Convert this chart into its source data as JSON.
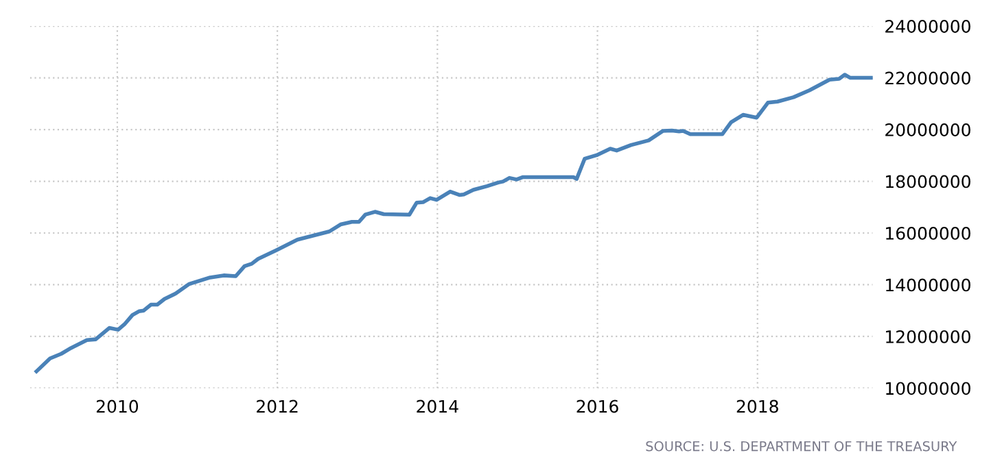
{
  "chart_data": {
    "type": "line",
    "x": [
      2008.99,
      2009.16,
      2009.3,
      2009.42,
      2009.62,
      2009.73,
      2009.9,
      2010.01,
      2010.09,
      2010.19,
      2010.27,
      2010.33,
      2010.42,
      2010.5,
      2010.59,
      2010.73,
      2010.9,
      2011.16,
      2011.33,
      2011.48,
      2011.59,
      2011.68,
      2011.76,
      2011.99,
      2012.25,
      2012.65,
      2012.79,
      2012.93,
      2013.02,
      2013.1,
      2013.22,
      2013.33,
      2013.65,
      2013.74,
      2013.82,
      2013.91,
      2013.99,
      2014.16,
      2014.28,
      2014.33,
      2014.45,
      2014.62,
      2014.76,
      2014.82,
      2014.9,
      2014.99,
      2015.07,
      2015.7,
      2015.74,
      2015.84,
      2015.99,
      2016.16,
      2016.24,
      2016.42,
      2016.64,
      2016.82,
      2016.93,
      2017.02,
      2017.07,
      2017.16,
      2017.56,
      2017.67,
      2017.82,
      2017.99,
      2018.13,
      2018.25,
      2018.45,
      2018.65,
      2018.9,
      2019.02,
      2019.09,
      2019.16,
      2019.42
    ],
    "series": [
      {
        "color": "#4a82b8",
        "values": [
          10650000,
          11150000,
          11330000,
          11550000,
          11860000,
          11890000,
          12330000,
          12260000,
          12470000,
          12830000,
          12970000,
          13000000,
          13230000,
          13230000,
          13450000,
          13660000,
          14030000,
          14280000,
          14360000,
          14330000,
          14720000,
          14810000,
          15000000,
          15340000,
          15740000,
          16060000,
          16330000,
          16430000,
          16430000,
          16710000,
          16820000,
          16730000,
          16710000,
          17170000,
          17190000,
          17350000,
          17280000,
          17600000,
          17470000,
          17490000,
          17670000,
          17810000,
          17950000,
          17990000,
          18130000,
          18070000,
          18160000,
          18160000,
          18090000,
          18870000,
          19010000,
          19260000,
          19190000,
          19400000,
          19580000,
          19950000,
          19960000,
          19930000,
          19950000,
          19820000,
          19820000,
          20280000,
          20570000,
          20460000,
          21040000,
          21080000,
          21250000,
          21520000,
          21930000,
          21960000,
          22120000,
          22000000,
          22000000
        ]
      }
    ],
    "xlim": [
      2008.91,
      2019.44
    ],
    "xticks": [
      2010,
      2012,
      2014,
      2016,
      2018
    ],
    "ylim": [
      10000000,
      24000000
    ],
    "yticks": [
      10000000,
      12000000,
      14000000,
      16000000,
      18000000,
      20000000,
      22000000,
      24000000
    ],
    "grid": true,
    "legend": false,
    "annotations": [
      "SOURCE: U.S. DEPARTMENT OF THE TREASURY"
    ]
  }
}
